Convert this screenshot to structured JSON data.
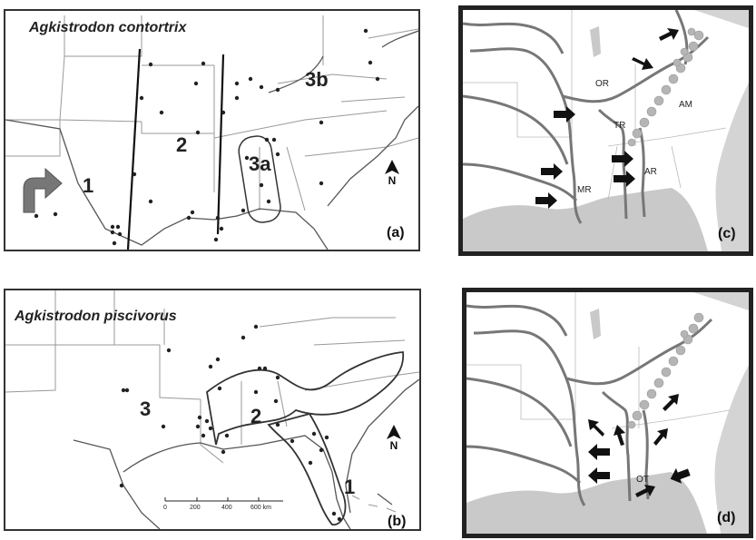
{
  "panel_a": {
    "title": "Agkistrodon contortrix",
    "letter": "(a)",
    "zones": [
      "1",
      "2",
      "3a",
      "3b"
    ],
    "north": "N",
    "arrow_icon": "curved-arrow-icon"
  },
  "panel_b": {
    "title": "Agkistrodon piscivorus",
    "letter": "(b)",
    "zones": [
      "1",
      "2",
      "3"
    ],
    "north": "N",
    "scale_ticks": [
      "0",
      "200",
      "400",
      "600 km"
    ]
  },
  "panel_c": {
    "letter": "(c)",
    "labels": [
      "OR",
      "TR",
      "AM",
      "MR",
      "AR"
    ],
    "arrow_icon": "black-arrow-icon"
  },
  "panel_d": {
    "letter": "(d)",
    "labels": [
      "OT"
    ],
    "arrow_icon": "black-arrow-icon"
  },
  "colors": {
    "ink": "#222222",
    "river": "#777777",
    "border": "#999999",
    "mountains": "#b5b5b5",
    "arrow": "#111111"
  }
}
